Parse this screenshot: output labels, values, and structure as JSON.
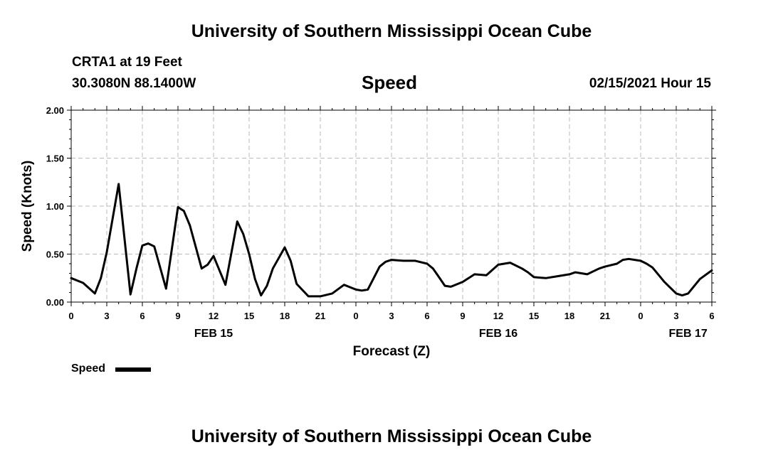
{
  "header": {
    "title": "University of Southern Mississippi Ocean Cube",
    "station": "CRTA1 at 19 Feet",
    "location": "30.3080N 88.1400W",
    "variable": "Speed",
    "datetime": "02/15/2021 Hour 15"
  },
  "footer": {
    "title": "University of Southern Mississippi Ocean Cube"
  },
  "legend": {
    "label": "Speed",
    "color": "#000000"
  },
  "chart_data": {
    "type": "line",
    "xlabel": "Forecast (Z)",
    "ylabel": "Speed (Knots)",
    "ylim": [
      0,
      2.0
    ],
    "yticks": [
      "0.00",
      "0.50",
      "1.00",
      "1.50",
      "2.00"
    ],
    "xlim": [
      0,
      54
    ],
    "xticks": [
      "0",
      "3",
      "6",
      "9",
      "12",
      "15",
      "18",
      "21",
      "0",
      "3",
      "6",
      "9",
      "12",
      "15",
      "18",
      "21",
      "0",
      "3",
      "6"
    ],
    "date_labels": [
      {
        "label": "FEB 15",
        "hour": 12
      },
      {
        "label": "FEB 16",
        "hour": 36
      },
      {
        "label": "FEB 17",
        "hour": 52
      }
    ],
    "grid": true,
    "series": [
      {
        "name": "Speed",
        "color": "#000000",
        "x": [
          0,
          1,
          2,
          2.5,
          3,
          4,
          5,
          5.5,
          6,
          6.5,
          7,
          8,
          9,
          9.5,
          10,
          11,
          11.5,
          12,
          13,
          14,
          14.5,
          15,
          15.5,
          16,
          16.5,
          17,
          18,
          18.5,
          19,
          20,
          21,
          22,
          23,
          24,
          24.5,
          25,
          25.5,
          26,
          26.5,
          27,
          28,
          29,
          30,
          30.5,
          31,
          31.5,
          32,
          33,
          34,
          35,
          36,
          37,
          38,
          38.5,
          39,
          40,
          41,
          42,
          42.5,
          43,
          43.5,
          44,
          44.5,
          45,
          46,
          46.5,
          47,
          47.5,
          48,
          48.5,
          49,
          50,
          51,
          51.5,
          52,
          53,
          54
        ],
        "values": [
          0.25,
          0.2,
          0.09,
          0.25,
          0.52,
          1.23,
          0.08,
          0.35,
          0.59,
          0.61,
          0.58,
          0.14,
          0.99,
          0.95,
          0.8,
          0.35,
          0.39,
          0.48,
          0.18,
          0.84,
          0.71,
          0.5,
          0.24,
          0.07,
          0.17,
          0.35,
          0.57,
          0.43,
          0.19,
          0.06,
          0.06,
          0.09,
          0.18,
          0.13,
          0.12,
          0.13,
          0.25,
          0.37,
          0.42,
          0.44,
          0.43,
          0.43,
          0.4,
          0.35,
          0.26,
          0.17,
          0.16,
          0.21,
          0.29,
          0.28,
          0.39,
          0.41,
          0.35,
          0.31,
          0.26,
          0.25,
          0.27,
          0.29,
          0.31,
          0.3,
          0.29,
          0.32,
          0.35,
          0.37,
          0.4,
          0.44,
          0.45,
          0.44,
          0.43,
          0.4,
          0.36,
          0.21,
          0.09,
          0.07,
          0.09,
          0.24,
          0.33
        ]
      }
    ]
  }
}
